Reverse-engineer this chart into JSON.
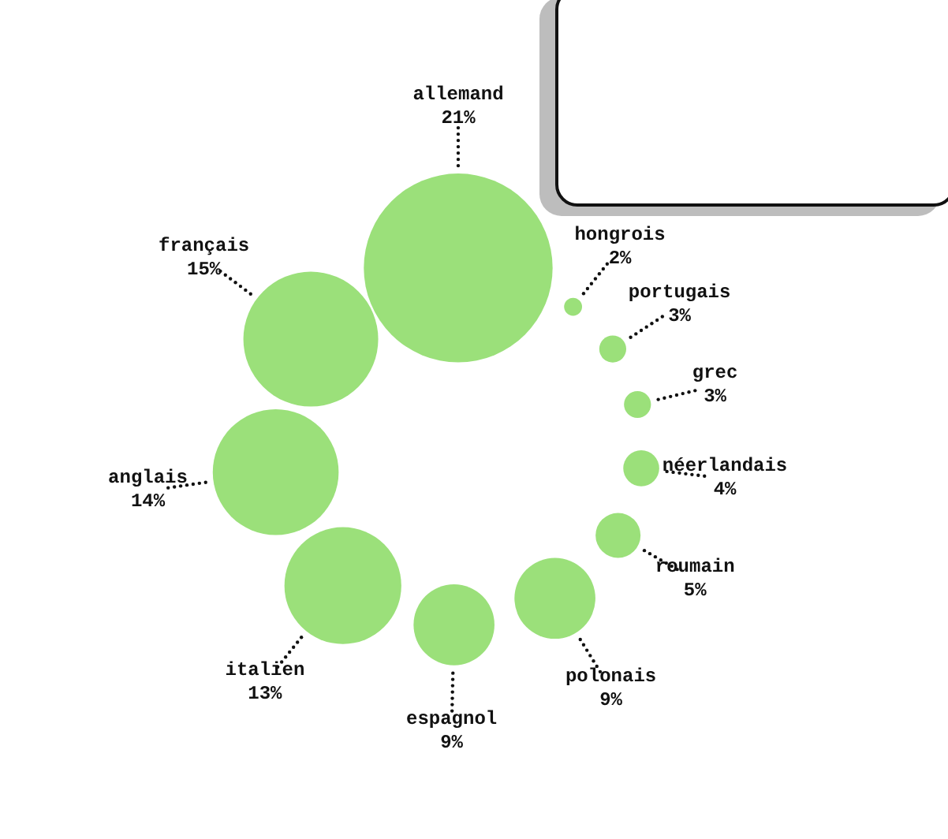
{
  "chart_data": {
    "type": "other",
    "categories": [
      "allemand",
      "hongrois",
      "portugais",
      "grec",
      "néerlandais",
      "roumain",
      "polonais",
      "espagnol",
      "italien",
      "anglais",
      "français"
    ],
    "values": [
      21,
      2,
      3,
      3,
      4,
      5,
      9,
      9,
      13,
      14,
      15
    ],
    "value_labels": [
      "21%",
      "2%",
      "3%",
      "3%",
      "4%",
      "5%",
      "9%",
      "9%",
      "13%",
      "14%",
      "15%"
    ],
    "color": "#9be07a"
  }
}
